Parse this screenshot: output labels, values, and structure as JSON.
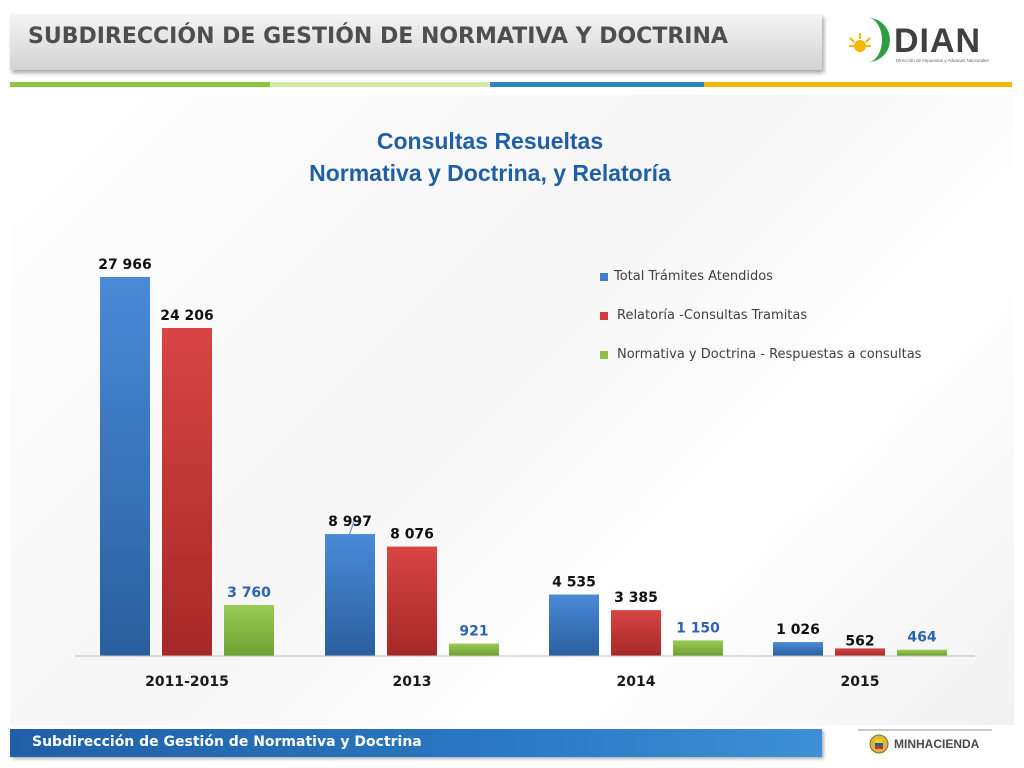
{
  "header": {
    "title": "SUBDIRECCIÓN DE GESTIÓN DE NORMATIVA Y DOCTRINA"
  },
  "logo": {
    "word": "DIAN",
    "subtitle": "Dirección de Impuestos y Aduanas Nacionales"
  },
  "colors": {
    "blue": "#3f7fce",
    "red": "#d03c3c",
    "green": "#8dc04a",
    "strip": [
      "#8cc63f",
      "#d7e9a8",
      "#2e86c1",
      "#f5b700"
    ],
    "blueLabel": "#2a62b5"
  },
  "chart_data": {
    "type": "bar",
    "title_lines": [
      "Consultas Resueltas",
      "Normativa y Doctrina, y Relatoría"
    ],
    "categories": [
      "2011-2015",
      "2013",
      "2014",
      "2015"
    ],
    "series": [
      {
        "name": "Total Trámites Atendidos",
        "values": [
          27966,
          8997,
          4535,
          1026
        ],
        "labels": [
          "27 966",
          "8 997",
          "4 535",
          "1 026"
        ]
      },
      {
        "name": "Relatoría -Consultas Tramitas",
        "values": [
          24206,
          8076,
          3385,
          562
        ],
        "labels": [
          "24 206",
          "8 076",
          "3 385",
          "562"
        ]
      },
      {
        "name": "Normativa y Doctrina - Respuestas a consultas",
        "values": [
          3760,
          921,
          1150,
          464
        ],
        "labels": [
          "3 760",
          "921",
          "1 150",
          "464"
        ]
      }
    ],
    "legend": "top-right",
    "grid": false,
    "ylim": [
      0,
      28000
    ]
  },
  "footer": {
    "text": "Subdirección de Gestión de Normativa y Doctrina",
    "ministry": "MINHACIENDA"
  }
}
